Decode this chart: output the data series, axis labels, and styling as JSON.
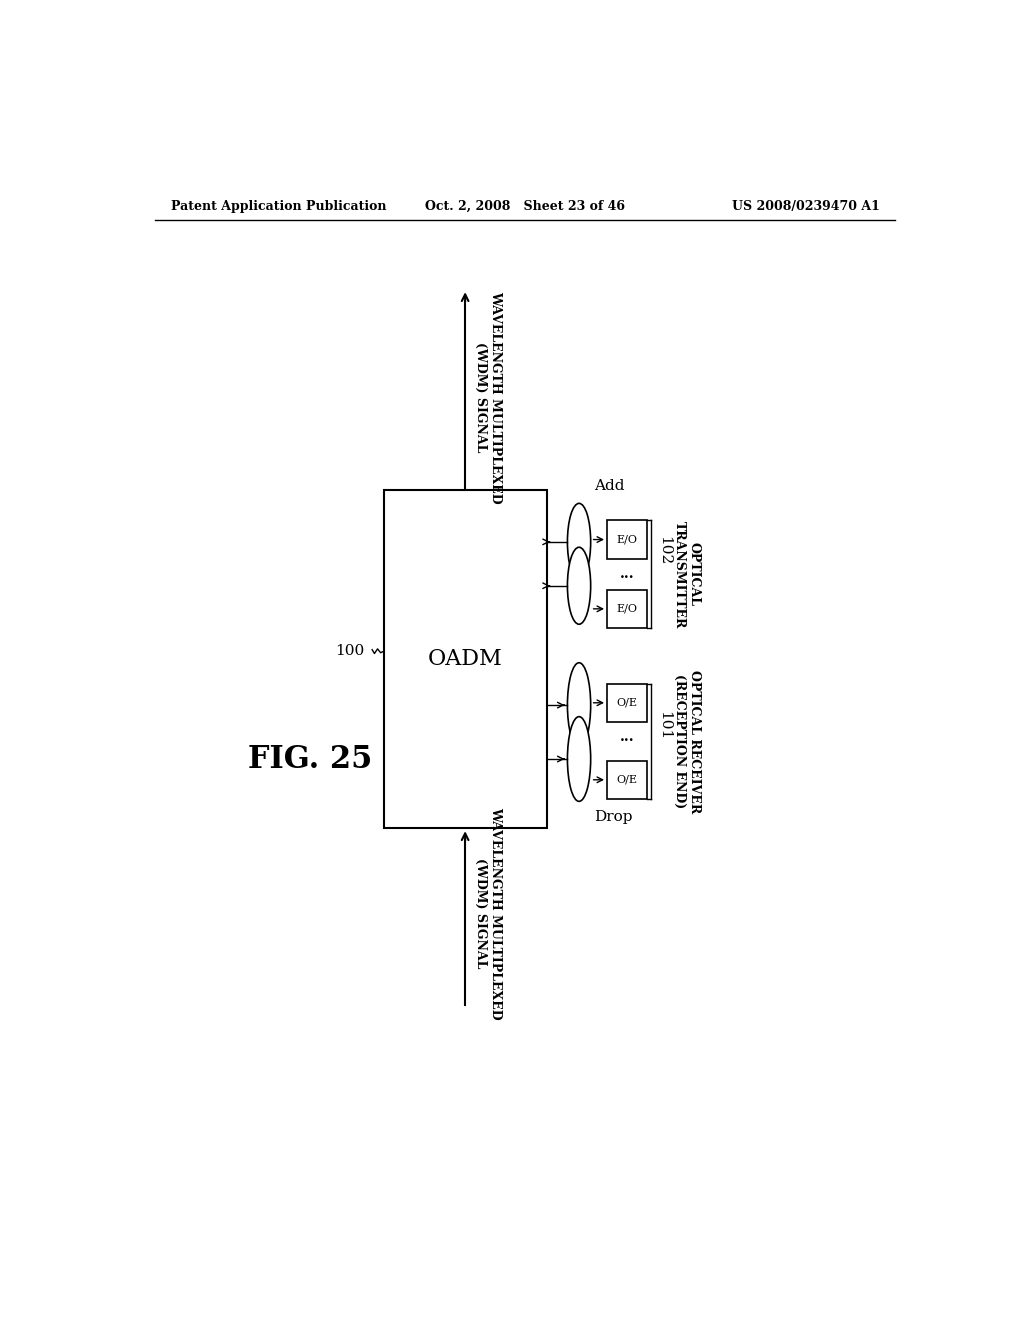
{
  "bg_color": "#ffffff",
  "header_left": "Patent Application Publication",
  "header_center": "Oct. 2, 2008   Sheet 23 of 46",
  "header_right": "US 2008/0239470 A1",
  "fig_label": "FIG. 25",
  "oadm_label": "OADM",
  "oadm_ref": "100",
  "top_signal_label": "WAVELENGTH MULTIPLEXED\n(WDM) SIGNAL",
  "bottom_signal_label": "WAVELENGTH MULTIPLEXED\n(WDM) SIGNAL",
  "add_label": "Add",
  "drop_label": "Drop",
  "ref_102": "102",
  "ref_101": "101",
  "opt_tx_label": "OPTICAL\nTRANSMITTER",
  "opt_rx_label": "OPTICAL RECEIVER\n(RECEPTION END)",
  "eob_label": "E/O",
  "ooe_label": "O/E",
  "dots": "..."
}
